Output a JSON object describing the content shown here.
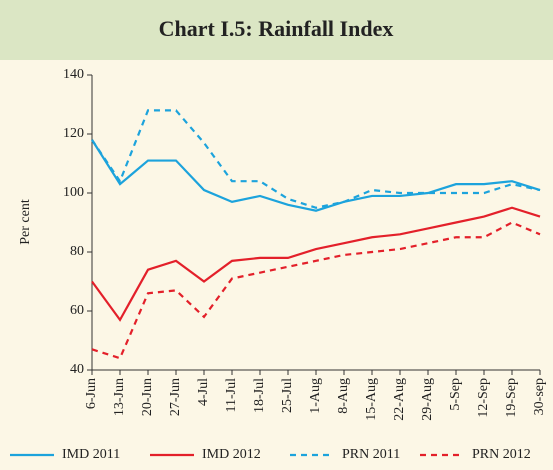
{
  "chart_data": {
    "type": "line",
    "title": "Chart I.5: Rainfall Index",
    "y_label": "Per cent",
    "categories": [
      "6-Jun",
      "13-Jun",
      "20-Jun",
      "27-Jun",
      "4-Jul",
      "11-Jul",
      "18-Jul",
      "25-Jul",
      "1-Aug",
      "8-Aug",
      "15-Aug",
      "22-Aug",
      "29-Aug",
      "5-Sep",
      "12-Sep",
      "19-Sep",
      "30-sep"
    ],
    "series": [
      {
        "name": "IMD 2011",
        "color": "#1ca3dc",
        "style": "solid",
        "values": [
          118,
          103,
          111,
          111,
          101,
          97,
          99,
          96,
          94,
          97,
          99,
          99,
          100,
          103,
          103,
          104,
          101
        ]
      },
      {
        "name": "IMD 2012",
        "color": "#e3202a",
        "style": "solid",
        "values": [
          70,
          57,
          74,
          77,
          70,
          77,
          78,
          78,
          81,
          83,
          85,
          86,
          88,
          90,
          92,
          95,
          92
        ]
      },
      {
        "name": "PRN 2011",
        "color": "#1ca3dc",
        "style": "dashed",
        "values": [
          118,
          104,
          128,
          128,
          117,
          104,
          104,
          98,
          95,
          97,
          101,
          100,
          100,
          100,
          100,
          103,
          101
        ]
      },
      {
        "name": "PRN 2012",
        "color": "#e3202a",
        "style": "dashed",
        "values": [
          47,
          44,
          66,
          67,
          58,
          71,
          73,
          75,
          77,
          79,
          80,
          81,
          83,
          85,
          85,
          90,
          86
        ]
      }
    ],
    "ylim": [
      40,
      140
    ],
    "yticks": [
      40,
      60,
      80,
      100,
      120,
      140
    ],
    "grid": false,
    "legend": "bottom"
  }
}
